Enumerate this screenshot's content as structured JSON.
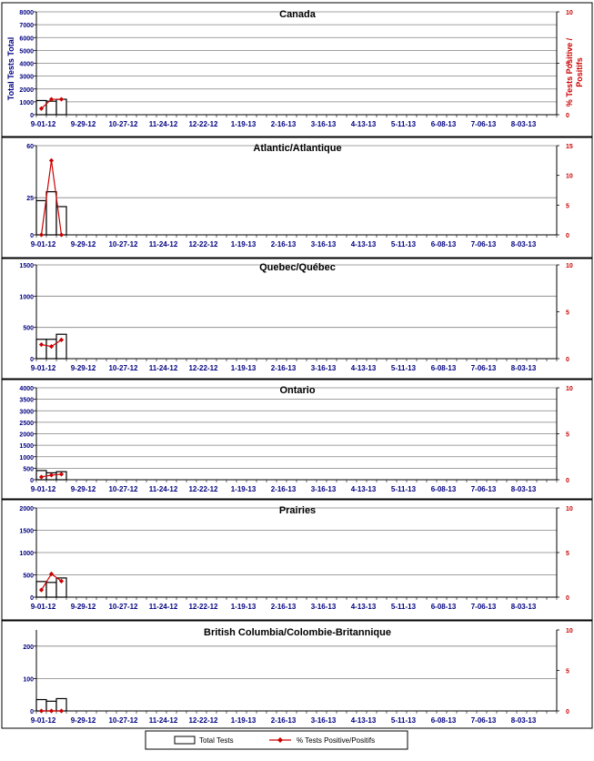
{
  "x_tick_labels": [
    "9-01-12",
    "9-29-12",
    "10-27-12",
    "11-24-12",
    "12-22-12",
    "1-19-13",
    "2-16-13",
    "3-16-13",
    "4-13-13",
    "5-11-13",
    "6-08-13",
    "7-06-13",
    "8-03-13"
  ],
  "week_count": 52,
  "legend": {
    "bars_label": "Total Tests",
    "line_label": "% Tests Positive/Positifs"
  },
  "colors": {
    "bars_fill": "#ffffff",
    "bars_stroke": "#000000",
    "line": "#cc0000",
    "axis_text_left": "#000080",
    "axis_text_right": "#cc0000",
    "grid": "#808080"
  },
  "chart_data": [
    {
      "type": "bar+line",
      "title": "Canada",
      "ylabel": "Total Tests Total",
      "y2label": "% Tests Positive / Positifs",
      "ylim": [
        0,
        8000
      ],
      "yticks": [
        0,
        1000,
        2000,
        3000,
        4000,
        5000,
        6000,
        7000,
        8000
      ],
      "y2lim": [
        0,
        10
      ],
      "y2ticks": [
        0,
        5,
        10
      ],
      "bars": [
        1100,
        1050,
        1200
      ],
      "line": [
        0.6,
        1.5,
        1.5
      ]
    },
    {
      "type": "bar+line",
      "title": "Atlantic/Atlantique",
      "ylim": [
        0,
        60
      ],
      "yticks": [
        0,
        25,
        60
      ],
      "y2lim": [
        0,
        15
      ],
      "y2ticks": [
        0,
        5,
        10,
        15
      ],
      "bars": [
        23,
        29,
        19
      ],
      "line": [
        0,
        12.5,
        0
      ]
    },
    {
      "type": "bar+line",
      "title": "Quebec/Québec",
      "ylim": [
        0,
        1500
      ],
      "yticks": [
        0,
        500,
        1000,
        1500
      ],
      "y2lim": [
        0,
        10
      ],
      "y2ticks": [
        0,
        5,
        10
      ],
      "bars": [
        310,
        310,
        390
      ],
      "line": [
        1.5,
        1.3,
        2.0
      ]
    },
    {
      "type": "bar+line",
      "title": "Ontario",
      "ylim": [
        0,
        4000
      ],
      "yticks": [
        0,
        500,
        1000,
        1500,
        2000,
        2500,
        3000,
        3500,
        4000
      ],
      "y2lim": [
        0,
        10
      ],
      "y2ticks": [
        0,
        5,
        10
      ],
      "bars": [
        400,
        300,
        350
      ],
      "line": [
        0.3,
        0.5,
        0.6
      ]
    },
    {
      "type": "bar+line",
      "title": "Prairies",
      "ylim": [
        0,
        2000
      ],
      "yticks": [
        0,
        500,
        1000,
        1500,
        2000
      ],
      "y2lim": [
        0,
        10
      ],
      "y2ticks": [
        0,
        5,
        10
      ],
      "bars": [
        350,
        330,
        430
      ],
      "line": [
        0.8,
        2.6,
        1.8
      ]
    },
    {
      "type": "bar+line",
      "title": "British Columbia/Colombie-Britannique",
      "ylim": [
        0,
        250
      ],
      "yticks": [
        0,
        100,
        200
      ],
      "y2lim": [
        0,
        10
      ],
      "y2ticks": [
        0,
        5,
        10
      ],
      "bars": [
        35,
        30,
        38
      ],
      "line": [
        0,
        0,
        0
      ]
    }
  ]
}
